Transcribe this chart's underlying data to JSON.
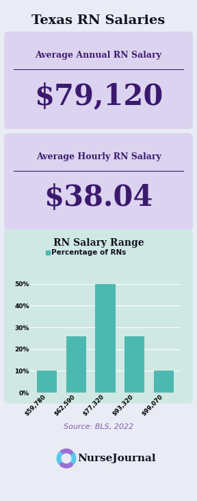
{
  "title": "Texas RN Salaries",
  "annual_label": "Average Annual RN Salary",
  "annual_value": "$79,120",
  "hourly_label": "Average Hourly RN Salary",
  "hourly_value": "$38.04",
  "chart_title": "RN Salary Range",
  "legend_label": "Percentage of RNs",
  "bar_categories": [
    "$59,780",
    "$62,590",
    "$77,320",
    "$93,320",
    "$99,070"
  ],
  "bar_values": [
    10,
    26,
    50,
    26,
    10
  ],
  "bar_color": "#4db8b0",
  "source_text": "Source: BLS, 2022",
  "logo_text": "NurseJournal",
  "bg_color": "#eaecf5",
  "card_color": "#dcd3f0",
  "chart_bg": "#cfe8e3",
  "title_color": "#111122",
  "card_text_color": "#3b1a6e",
  "source_color": "#7b5ea7",
  "yticks": [
    0,
    10,
    20,
    30,
    40,
    50
  ],
  "ylim": [
    0,
    55
  ],
  "legend_dot_color": "#4db8b0"
}
